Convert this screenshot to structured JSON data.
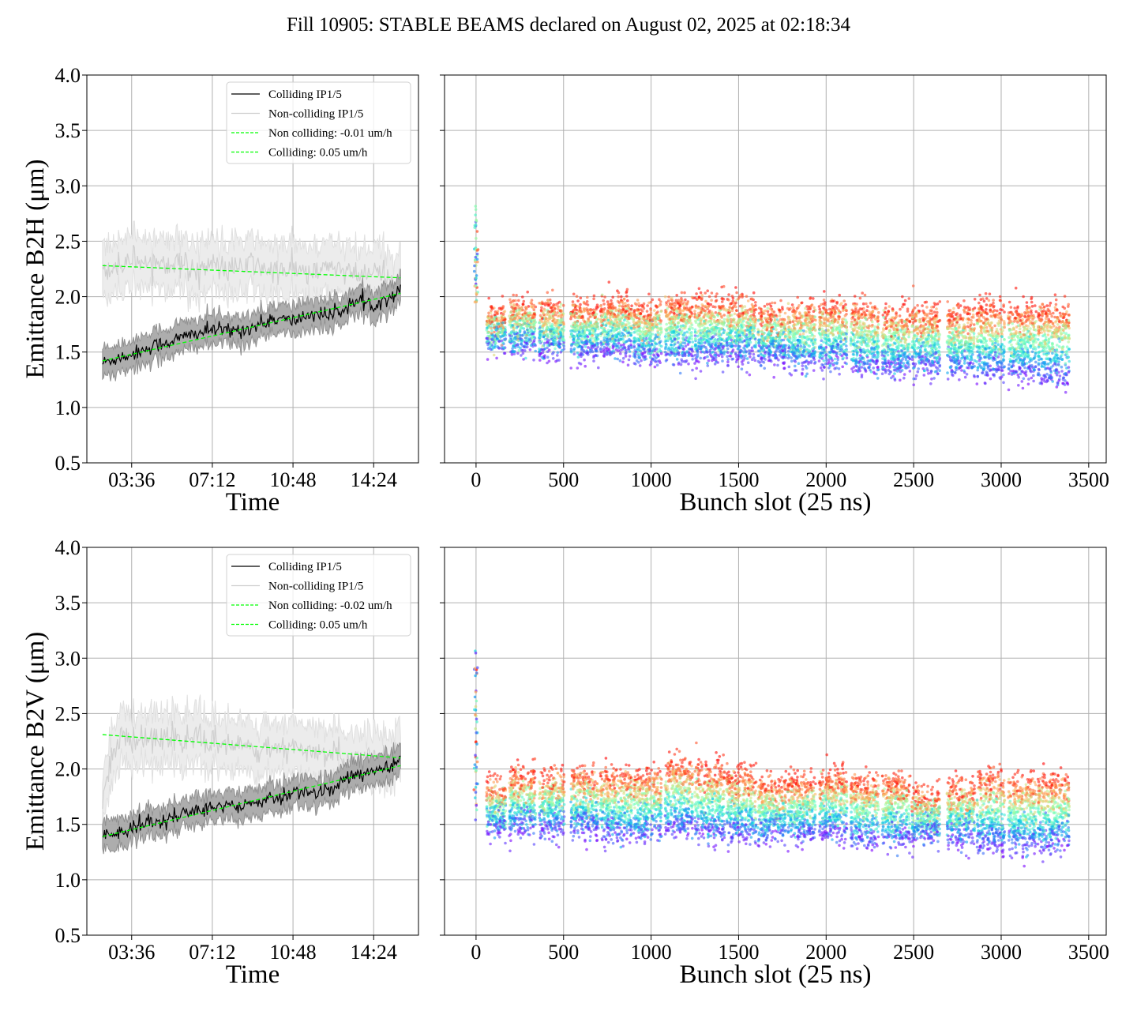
{
  "figure": {
    "title": "Fill 10905: STABLE BEAMS declared on August 02, 2025 at 02:18:34"
  },
  "colors": {
    "colliding_line": "#000000",
    "colliding_band": "#a9a9a9",
    "noncolliding_line": "#cfcfcf",
    "noncolliding_band": "#ececec",
    "fit_line": "#00ff00",
    "grid": "#b0b0b0",
    "colormap": "rainbow"
  },
  "chart_data": [
    {
      "id": "b2h_time",
      "type": "line",
      "title": "",
      "xlabel": "Time",
      "ylabel": "Emittance B2H (μm)",
      "ylim": [
        0.5,
        4.0
      ],
      "yticks": [
        "0.5",
        "1.0",
        "1.5",
        "2.0",
        "2.5",
        "3.0",
        "3.5",
        "4.0"
      ],
      "xlim_hours": [
        1.6,
        16.4
      ],
      "xticks": [
        {
          "label": "03:36",
          "hours": 3.6
        },
        {
          "label": "07:12",
          "hours": 7.2
        },
        {
          "label": "10:48",
          "hours": 10.8
        },
        {
          "label": "14:24",
          "hours": 14.4
        }
      ],
      "grid": true,
      "legend_position": "upper-right",
      "legend": [
        {
          "label": "Colliding IP1/5",
          "style": "solid-black"
        },
        {
          "label": "Non-colliding IP1/5",
          "style": "solid-lightgray"
        },
        {
          "label": "Non colliding: -0.01 um/h",
          "style": "dashed-green"
        },
        {
          "label": "Colliding: 0.05 um/h",
          "style": "dashed-green"
        }
      ],
      "x_hours": [
        2.3,
        3.0,
        3.6,
        4.5,
        5.4,
        6.3,
        7.2,
        8.1,
        9.0,
        9.9,
        10.8,
        11.7,
        12.6,
        13.5,
        14.4,
        15.3,
        15.6
      ],
      "series": [
        {
          "name": "Colliding IP1/5",
          "values": [
            1.4,
            1.45,
            1.48,
            1.55,
            1.6,
            1.66,
            1.7,
            1.69,
            1.72,
            1.8,
            1.78,
            1.85,
            1.83,
            1.95,
            1.93,
            2.02,
            2.05
          ],
          "band": 0.12
        },
        {
          "name": "Non-colliding IP1/5",
          "values": [
            2.25,
            2.28,
            2.35,
            2.3,
            2.33,
            2.25,
            2.28,
            2.24,
            2.3,
            2.22,
            2.25,
            2.2,
            2.28,
            2.18,
            2.22,
            2.15,
            2.18
          ],
          "band": 0.22
        },
        {
          "name": "Non colliding: -0.01 um/h",
          "fit": [
            2.28,
            2.17
          ]
        },
        {
          "name": "Colliding: 0.05 um/h",
          "fit": [
            1.42,
            2.03
          ]
        }
      ]
    },
    {
      "id": "b2h_bunch",
      "type": "scatter",
      "title": "",
      "xlabel": "Bunch slot (25 ns)",
      "ylabel": "",
      "xlim": [
        -180,
        3600
      ],
      "ylim": [
        0.5,
        4.0
      ],
      "xticks": [
        "0",
        "500",
        "1000",
        "1500",
        "2000",
        "2500",
        "3000",
        "3500"
      ],
      "grid": true,
      "color_by": "time (rainbow: early=purple, late=red)",
      "trains": [
        {
          "start": 60,
          "end": 170,
          "low": 1.45,
          "high": 1.95
        },
        {
          "start": 190,
          "end": 340,
          "low": 1.45,
          "high": 2.0
        },
        {
          "start": 360,
          "end": 505,
          "low": 1.4,
          "high": 2.0
        },
        {
          "start": 540,
          "end": 700,
          "low": 1.4,
          "high": 2.0
        },
        {
          "start": 710,
          "end": 890,
          "low": 1.4,
          "high": 2.05
        },
        {
          "start": 900,
          "end": 1060,
          "low": 1.35,
          "high": 2.0
        },
        {
          "start": 1080,
          "end": 1240,
          "low": 1.35,
          "high": 2.05
        },
        {
          "start": 1250,
          "end": 1420,
          "low": 1.35,
          "high": 2.05
        },
        {
          "start": 1430,
          "end": 1600,
          "low": 1.35,
          "high": 2.05
        },
        {
          "start": 1610,
          "end": 1770,
          "low": 1.35,
          "high": 1.95
        },
        {
          "start": 1780,
          "end": 1940,
          "low": 1.3,
          "high": 2.0
        },
        {
          "start": 1960,
          "end": 2120,
          "low": 1.3,
          "high": 2.0
        },
        {
          "start": 2140,
          "end": 2300,
          "low": 1.25,
          "high": 2.0
        },
        {
          "start": 2320,
          "end": 2480,
          "low": 1.25,
          "high": 1.95
        },
        {
          "start": 2490,
          "end": 2650,
          "low": 1.25,
          "high": 1.95
        },
        {
          "start": 2690,
          "end": 2850,
          "low": 1.25,
          "high": 1.95
        },
        {
          "start": 2860,
          "end": 3020,
          "low": 1.2,
          "high": 2.0
        },
        {
          "start": 3040,
          "end": 3200,
          "low": 1.2,
          "high": 2.0
        },
        {
          "start": 3210,
          "end": 3390,
          "low": 1.15,
          "high": 2.0
        }
      ],
      "pilot": {
        "slot": 0,
        "low": 1.95,
        "high": 2.93
      }
    },
    {
      "id": "b2v_time",
      "type": "line",
      "title": "",
      "xlabel": "Time",
      "ylabel": "Emittance B2V (μm)",
      "ylim": [
        0.5,
        4.0
      ],
      "yticks": [
        "0.5",
        "1.0",
        "1.5",
        "2.0",
        "2.5",
        "3.0",
        "3.5",
        "4.0"
      ],
      "xlim_hours": [
        1.6,
        16.4
      ],
      "xticks": [
        {
          "label": "03:36",
          "hours": 3.6
        },
        {
          "label": "07:12",
          "hours": 7.2
        },
        {
          "label": "10:48",
          "hours": 10.8
        },
        {
          "label": "14:24",
          "hours": 14.4
        }
      ],
      "grid": true,
      "legend_position": "upper-right",
      "legend": [
        {
          "label": "Colliding IP1/5",
          "style": "solid-black"
        },
        {
          "label": "Non-colliding IP1/5",
          "style": "solid-lightgray"
        },
        {
          "label": "Non colliding: -0.02 um/h",
          "style": "dashed-green"
        },
        {
          "label": "Colliding: 0.05 um/h",
          "style": "dashed-green"
        }
      ],
      "x_hours": [
        2.3,
        3.0,
        3.6,
        4.5,
        5.4,
        6.3,
        7.2,
        8.1,
        9.0,
        9.9,
        10.8,
        11.7,
        12.6,
        13.5,
        14.4,
        15.3,
        15.6
      ],
      "series": [
        {
          "name": "Colliding IP1/5",
          "values": [
            1.4,
            1.42,
            1.46,
            1.52,
            1.56,
            1.62,
            1.65,
            1.68,
            1.7,
            1.74,
            1.78,
            1.8,
            1.82,
            1.95,
            1.98,
            2.02,
            2.1
          ],
          "band": 0.12
        },
        {
          "name": "Non-colliding IP1/5",
          "values": [
            1.75,
            2.28,
            2.28,
            2.3,
            2.27,
            2.26,
            2.24,
            2.22,
            2.2,
            2.18,
            2.16,
            2.14,
            2.12,
            2.12,
            2.1,
            2.1,
            2.14
          ],
          "band": 0.22
        },
        {
          "name": "Non colliding: -0.02 um/h",
          "fit": [
            2.31,
            2.1
          ]
        },
        {
          "name": "Colliding: 0.05 um/h",
          "fit": [
            1.39,
            2.03
          ]
        }
      ]
    },
    {
      "id": "b2v_bunch",
      "type": "scatter",
      "title": "",
      "xlabel": "Bunch slot (25 ns)",
      "ylabel": "",
      "xlim": [
        -180,
        3600
      ],
      "ylim": [
        0.5,
        4.0
      ],
      "xticks": [
        "0",
        "500",
        "1000",
        "1500",
        "2000",
        "2500",
        "3000",
        "3500"
      ],
      "grid": true,
      "color_by": "time (rainbow: early=purple, late=red)",
      "trains": [
        {
          "start": 60,
          "end": 170,
          "low": 1.35,
          "high": 1.95
        },
        {
          "start": 190,
          "end": 340,
          "low": 1.35,
          "high": 2.05
        },
        {
          "start": 360,
          "end": 505,
          "low": 1.35,
          "high": 2.05
        },
        {
          "start": 540,
          "end": 700,
          "low": 1.35,
          "high": 2.05
        },
        {
          "start": 710,
          "end": 890,
          "low": 1.3,
          "high": 2.05
        },
        {
          "start": 900,
          "end": 1060,
          "low": 1.3,
          "high": 2.05
        },
        {
          "start": 1080,
          "end": 1240,
          "low": 1.35,
          "high": 2.15
        },
        {
          "start": 1250,
          "end": 1420,
          "low": 1.3,
          "high": 2.1
        },
        {
          "start": 1430,
          "end": 1600,
          "low": 1.3,
          "high": 2.05
        },
        {
          "start": 1610,
          "end": 1770,
          "low": 1.3,
          "high": 1.95
        },
        {
          "start": 1780,
          "end": 1940,
          "low": 1.3,
          "high": 2.0
        },
        {
          "start": 1960,
          "end": 2120,
          "low": 1.3,
          "high": 2.05
        },
        {
          "start": 2140,
          "end": 2300,
          "low": 1.25,
          "high": 2.0
        },
        {
          "start": 2320,
          "end": 2480,
          "low": 1.25,
          "high": 2.0
        },
        {
          "start": 2490,
          "end": 2650,
          "low": 1.3,
          "high": 1.85
        },
        {
          "start": 2690,
          "end": 2850,
          "low": 1.25,
          "high": 1.95
        },
        {
          "start": 2860,
          "end": 3020,
          "low": 1.2,
          "high": 2.05
        },
        {
          "start": 3040,
          "end": 3200,
          "low": 1.2,
          "high": 2.0
        },
        {
          "start": 3210,
          "end": 3390,
          "low": 1.2,
          "high": 2.0
        }
      ],
      "pilot": {
        "slot": 0,
        "low": 1.5,
        "high": 3.13
      }
    }
  ]
}
